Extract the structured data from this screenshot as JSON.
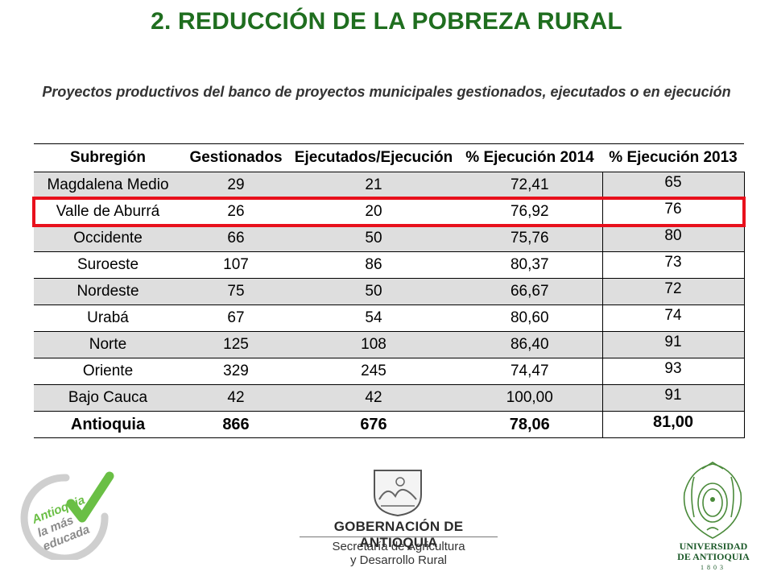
{
  "header": {
    "title": "2. REDUCCIÓN DE LA POBREZA RURAL",
    "subtitle": "Proyectos productivos del banco de proyectos municipales gestionados, ejecutados o en ejecución"
  },
  "table": {
    "columns": [
      "Subregión",
      "Gestionados",
      "Ejecutados/Ejecución",
      "% Ejecución 2014",
      "% Ejecución 2013"
    ],
    "rows": [
      {
        "subregion": "Magdalena Medio",
        "gestionados": "29",
        "ejecutados": "21",
        "ejec2014": "72,41",
        "ejec2013": "65"
      },
      {
        "subregion": "Valle de Aburrá",
        "gestionados": "26",
        "ejecutados": "20",
        "ejec2014": "76,92",
        "ejec2013": "76"
      },
      {
        "subregion": "Occidente",
        "gestionados": "66",
        "ejecutados": "50",
        "ejec2014": "75,76",
        "ejec2013": "80"
      },
      {
        "subregion": "Suroeste",
        "gestionados": "107",
        "ejecutados": "86",
        "ejec2014": "80,37",
        "ejec2013": "73"
      },
      {
        "subregion": "Nordeste",
        "gestionados": "75",
        "ejecutados": "50",
        "ejec2014": "66,67",
        "ejec2013": "72"
      },
      {
        "subregion": "Urabá",
        "gestionados": "67",
        "ejecutados": "54",
        "ejec2014": "80,60",
        "ejec2013": "74"
      },
      {
        "subregion": "Norte",
        "gestionados": "125",
        "ejecutados": "108",
        "ejec2014": "86,40",
        "ejec2013": "91"
      },
      {
        "subregion": "Oriente",
        "gestionados": "329",
        "ejecutados": "245",
        "ejec2014": "74,47",
        "ejec2013": "93"
      },
      {
        "subregion": "Bajo Cauca",
        "gestionados": "42",
        "ejecutados": "42",
        "ejec2014": "100,00",
        "ejec2013": "91"
      }
    ],
    "total": {
      "subregion": "Antioquia",
      "gestionados": "866",
      "ejecutados": "676",
      "ejec2014": "78,06",
      "ejec2013": "81,00"
    },
    "highlight_color": "#e8101c",
    "shade_color": "#dedede"
  },
  "logos": {
    "left": {
      "text": [
        "Antioquia",
        "la más",
        "educada"
      ],
      "color": "#6abf45"
    },
    "center": {
      "name": "GOBERNACIÓN DE ANTIOQUIA",
      "secretaria": [
        "Secretaría de Agricultura",
        "y Desarrollo Rural"
      ]
    },
    "right": {
      "name": [
        "UNIVERSIDAD",
        "DE ANTIOQUIA"
      ],
      "year": "1803",
      "color": "#1d5a2a"
    }
  },
  "colors": {
    "title": "#1f6e1f",
    "subtitle": "#333333"
  }
}
